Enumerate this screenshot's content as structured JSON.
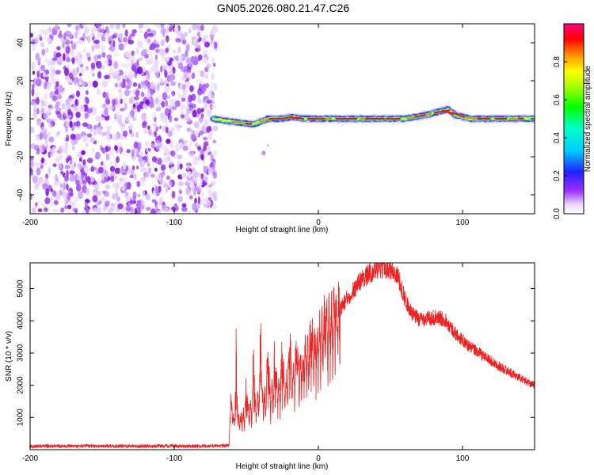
{
  "title": "GN05.2026.080.21.47.C26",
  "chart_data": [
    {
      "type": "heatmap",
      "title": "GN05.2026.080.21.47.C26",
      "xlabel": "Height of straight line (km)",
      "ylabel": "Frequency (Hz)",
      "xlim": [
        -200,
        150
      ],
      "ylim": [
        -50,
        50
      ],
      "xticks": [
        -200,
        -100,
        0,
        100
      ],
      "yticks": [
        -40,
        -20,
        0,
        20,
        40
      ],
      "colorbar": {
        "label": "Normalized spectral amplitude",
        "range": [
          0,
          1
        ],
        "ticks": [
          0.0,
          0.2,
          0.4,
          0.6,
          0.8
        ],
        "tick_labels": [
          "0.0",
          "0.2",
          "0.4",
          "0.6",
          "0.8"
        ],
        "colormap": [
          "#ffffff",
          "#8000ff",
          "#0000ff",
          "#00ffff",
          "#00ff00",
          "#ffff00",
          "#ff8000",
          "#ff0000",
          "#ff0080"
        ]
      },
      "noise_region": {
        "x": [
          -200,
          -71
        ],
        "freq": [
          -50,
          50
        ],
        "value": [
          0.0,
          0.35
        ],
        "color": "#8a2be2"
      },
      "signal_track": {
        "x_start": -73,
        "x_end": 150,
        "freq_points": [
          [
            -73,
            0
          ],
          [
            -65,
            -1
          ],
          [
            -55,
            -2
          ],
          [
            -45,
            -3
          ],
          [
            -35,
            0
          ],
          [
            -25,
            0
          ],
          [
            -18,
            1
          ],
          [
            -10,
            0
          ],
          [
            0,
            0
          ],
          [
            20,
            0
          ],
          [
            40,
            0
          ],
          [
            60,
            0
          ],
          [
            75,
            2
          ],
          [
            85,
            4
          ],
          [
            90,
            5
          ],
          [
            95,
            2
          ],
          [
            105,
            0
          ],
          [
            120,
            0
          ],
          [
            150,
            0
          ]
        ],
        "peak_value": 0.95
      },
      "annotation_blip": {
        "x": -38,
        "freq": -18
      }
    },
    {
      "type": "line",
      "xlabel": "Height of straight line (km)",
      "ylabel": "SNR (10 * v/v)",
      "xlim": [
        -200,
        150
      ],
      "ylim": [
        0,
        5800
      ],
      "xticks": [
        -200,
        -100,
        0,
        100
      ],
      "yticks": [
        1000,
        2000,
        3000,
        4000,
        5000
      ],
      "grid": false,
      "series": [
        {
          "color": "#ee2222",
          "envelope": [
            [
              -200,
              110
            ],
            [
              -150,
              110
            ],
            [
              -100,
              110
            ],
            [
              -75,
              110
            ],
            [
              -62,
              130
            ],
            [
              -61,
              1500
            ],
            [
              -58,
              800
            ],
            [
              -50,
              1100
            ],
            [
              -40,
              1500
            ],
            [
              -30,
              1800
            ],
            [
              -20,
              2200
            ],
            [
              -10,
              2700
            ],
            [
              0,
              3300
            ],
            [
              10,
              4000
            ],
            [
              20,
              4700
            ],
            [
              30,
              5300
            ],
            [
              40,
              5600
            ],
            [
              48,
              5650
            ],
            [
              55,
              5400
            ],
            [
              60,
              4700
            ],
            [
              65,
              4200
            ],
            [
              70,
              4050
            ],
            [
              80,
              4100
            ],
            [
              88,
              4050
            ],
            [
              95,
              3600
            ],
            [
              105,
              3200
            ],
            [
              115,
              2900
            ],
            [
              125,
              2600
            ],
            [
              135,
              2350
            ],
            [
              145,
              2100
            ],
            [
              150,
              2000
            ]
          ],
          "spikes": [
            [
              -57,
              3950
            ],
            [
              -50,
              2700
            ],
            [
              -45,
              3700
            ],
            [
              -40,
              4200
            ],
            [
              -35,
              4000
            ],
            [
              -30,
              4300
            ],
            [
              -25,
              3800
            ],
            [
              -20,
              4500
            ],
            [
              -15,
              3900
            ],
            [
              -5,
              4200
            ],
            [
              5,
              4700
            ],
            [
              15,
              5100
            ]
          ]
        }
      ]
    }
  ]
}
